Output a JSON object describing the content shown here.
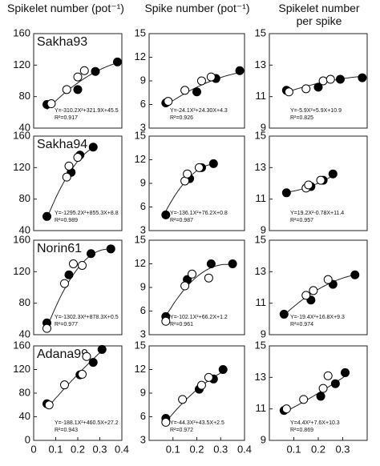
{
  "column_headers": [
    "Spikelet number (pot⁻¹)",
    "Spike number (pot⁻¹)",
    "Spikelet number per spike"
  ],
  "chart_data": [
    {
      "type": "scatter",
      "title": "Sakha93",
      "xlim": [
        0,
        0.4
      ],
      "ylim": [
        40,
        160
      ],
      "yticks": [
        40,
        80,
        120,
        160
      ],
      "series": [
        {
          "marker": "filled",
          "color": "#000000",
          "x": [
            0.06,
            0.2,
            0.28,
            0.38
          ],
          "values": [
            70,
            89,
            112,
            124
          ]
        },
        {
          "marker": "open",
          "color": "#000000",
          "x": [
            0.08,
            0.15,
            0.2,
            0.23
          ],
          "values": [
            71,
            89,
            105,
            113
          ]
        }
      ],
      "fit": [
        -310.2,
        321.9,
        45.5
      ],
      "annotations": [
        "Y=-310.2X²+321.9X+45.5",
        "R²=0.917"
      ]
    },
    {
      "type": "scatter",
      "xlim": [
        0,
        0.4
      ],
      "ylim": [
        3,
        15
      ],
      "yticks": [
        3,
        6,
        9,
        12,
        15
      ],
      "series": [
        {
          "marker": "filled",
          "color": "#000000",
          "x": [
            0.07,
            0.2,
            0.28,
            0.38
          ],
          "values": [
            6.2,
            7.6,
            9.3,
            10.3
          ]
        },
        {
          "marker": "open",
          "color": "#000000",
          "x": [
            0.08,
            0.15,
            0.22,
            0.26
          ],
          "values": [
            6.4,
            7.8,
            9.0,
            9.5
          ]
        }
      ],
      "fit": [
        -24.1,
        24.3,
        4.3
      ],
      "annotations": [
        "Y=-24.1X²+24.30X+4.3",
        "R²=0.926"
      ]
    },
    {
      "type": "scatter",
      "xlim": [
        0,
        0.4
      ],
      "ylim": [
        9,
        15
      ],
      "yticks": [
        9,
        11,
        13,
        15
      ],
      "series": [
        {
          "marker": "filled",
          "color": "#000000",
          "x": [
            0.07,
            0.2,
            0.29,
            0.38
          ],
          "values": [
            11.4,
            11.6,
            12.1,
            12.2
          ]
        },
        {
          "marker": "open",
          "color": "#000000",
          "x": [
            0.08,
            0.15,
            0.22,
            0.25
          ],
          "values": [
            11.3,
            11.5,
            12.0,
            12.1
          ]
        }
      ],
      "fit": [
        -5.9,
        5.9,
        10.9
      ],
      "annotations": [
        "Y=-5.9X²+5.9X+10.9",
        "R²=0.825"
      ]
    },
    {
      "type": "scatter",
      "title": "Sakha94",
      "xlim": [
        0,
        0.4
      ],
      "ylim": [
        40,
        160
      ],
      "yticks": [
        40,
        80,
        120,
        160
      ],
      "series": [
        {
          "marker": "filled",
          "color": "#000000",
          "x": [
            0.06,
            0.17,
            0.21,
            0.27
          ],
          "values": [
            58,
            114,
            136,
            146
          ]
        },
        {
          "marker": "open",
          "color": "#000000",
          "x": [
            0.15,
            0.16,
            0.2
          ],
          "values": [
            108,
            122,
            133
          ]
        }
      ],
      "fit": [
        -1295.2,
        855.3,
        8.8
      ],
      "annotations": [
        "Y=-1295.2X²+855.3X+8.8",
        "R²=0.989"
      ]
    },
    {
      "type": "scatter",
      "xlim": [
        0,
        0.4
      ],
      "ylim": [
        3,
        15
      ],
      "yticks": [
        3,
        6,
        9,
        12,
        15
      ],
      "series": [
        {
          "marker": "filled",
          "color": "#000000",
          "x": [
            0.07,
            0.17,
            0.22,
            0.27
          ],
          "values": [
            5,
            9.6,
            11.0,
            11.5
          ]
        },
        {
          "marker": "open",
          "color": "#000000",
          "x": [
            0.15,
            0.16,
            0.21
          ],
          "values": [
            9.3,
            10.2,
            11.0
          ]
        }
      ],
      "fit": [
        -136.1,
        76.2,
        0.8
      ],
      "annotations": [
        "Y=-136.1X²+76.2X+0.8",
        "R²=0.987"
      ]
    },
    {
      "type": "scatter",
      "xlim": [
        0,
        0.4
      ],
      "ylim": [
        9,
        15
      ],
      "yticks": [
        9,
        11,
        13,
        15
      ],
      "series": [
        {
          "marker": "filled",
          "color": "#000000",
          "x": [
            0.07,
            0.17,
            0.22,
            0.26
          ],
          "values": [
            11.4,
            11.8,
            12.2,
            12.6
          ]
        },
        {
          "marker": "open",
          "color": "#000000",
          "x": [
            0.15,
            0.16,
            0.21
          ],
          "values": [
            11.7,
            11.9,
            12.2
          ]
        }
      ],
      "fit": [
        19.2,
        -0.78,
        11.4
      ],
      "annotations": [
        "Y=19.2X²-0.78X+11.4",
        "R²=0.957"
      ]
    },
    {
      "type": "scatter",
      "title": "Norin61",
      "xlim": [
        0,
        0.4
      ],
      "ylim": [
        40,
        160
      ],
      "yticks": [
        40,
        80,
        120,
        160
      ],
      "series": [
        {
          "marker": "filled",
          "color": "#000000",
          "x": [
            0.06,
            0.16,
            0.26,
            0.35
          ],
          "values": [
            55,
            116,
            143,
            149
          ]
        },
        {
          "marker": "open",
          "color": "#000000",
          "x": [
            0.06,
            0.14,
            0.18,
            0.22
          ],
          "values": [
            48,
            105,
            130,
            128
          ]
        }
      ],
      "fit": [
        -1302.3,
        878.3,
        0.5
      ],
      "annotations": [
        "Y=-1302.3X²+878.3X+0.5",
        "R²=0.977"
      ]
    },
    {
      "type": "scatter",
      "xlim": [
        0,
        0.4
      ],
      "ylim": [
        3,
        15
      ],
      "yticks": [
        3,
        6,
        9,
        12,
        15
      ],
      "series": [
        {
          "marker": "filled",
          "color": "#000000",
          "x": [
            0.07,
            0.16,
            0.26,
            0.35
          ],
          "values": [
            5.3,
            10.0,
            12.0,
            12.0
          ]
        },
        {
          "marker": "open",
          "color": "#000000",
          "x": [
            0.07,
            0.15,
            0.18,
            0.25
          ],
          "values": [
            4.7,
            9.2,
            10.7,
            10.2
          ]
        }
      ],
      "fit": [
        -102.1,
        66.2,
        1.2
      ],
      "annotations": [
        "Y=-102.1X²+66.2X+1.2",
        "R²=0.961"
      ]
    },
    {
      "type": "scatter",
      "xlim": [
        0,
        0.4
      ],
      "ylim": [
        9,
        15
      ],
      "yticks": [
        9,
        11,
        13,
        15
      ],
      "series": [
        {
          "marker": "filled",
          "color": "#000000",
          "x": [
            0.06,
            0.17,
            0.26,
            0.35
          ],
          "values": [
            10.3,
            11.2,
            12.2,
            12.8
          ]
        },
        {
          "marker": "open",
          "color": "#000000",
          "x": [
            0.15,
            0.18,
            0.24
          ],
          "values": [
            11.5,
            11.8,
            12.5
          ]
        }
      ],
      "fit": [
        -19.4,
        16.8,
        9.3
      ],
      "annotations": [
        "Y=-19.4X²+16.8X+9.3",
        "R²=0.974"
      ]
    },
    {
      "type": "scatter",
      "title": "Adana99",
      "xlim": [
        0,
        0.4
      ],
      "ylim": [
        0,
        160
      ],
      "yticks": [
        0,
        40,
        80,
        120,
        160
      ],
      "xticks": [
        0,
        0.1,
        0.2,
        0.3,
        0.4
      ],
      "series": [
        {
          "marker": "filled",
          "color": "#000000",
          "x": [
            0.06,
            0.21,
            0.27,
            0.31
          ],
          "values": [
            62,
            111,
            132,
            154
          ]
        },
        {
          "marker": "open",
          "color": "#000000",
          "x": [
            0.07,
            0.14,
            0.22,
            0.24
          ],
          "values": [
            60,
            94,
            112,
            142
          ]
        }
      ],
      "fit": [
        -188.1,
        460.5,
        27.2
      ],
      "annotations": [
        "Y=-188.1X²+460.5X+27.2",
        "R²=0.943"
      ]
    },
    {
      "type": "scatter",
      "xlim": [
        0,
        0.4
      ],
      "ylim": [
        3,
        15
      ],
      "yticks": [
        3,
        6,
        9,
        12,
        15
      ],
      "xticks": [
        0.1,
        0.2,
        0.3,
        0.4
      ],
      "series": [
        {
          "marker": "filled",
          "color": "#000000",
          "x": [
            0.07,
            0.21,
            0.27,
            0.31
          ],
          "values": [
            5.8,
            9.5,
            10.8,
            12.0
          ]
        },
        {
          "marker": "open",
          "color": "#000000",
          "x": [
            0.07,
            0.14,
            0.22,
            0.25
          ],
          "values": [
            5.3,
            8.2,
            10.0,
            11.0
          ]
        }
      ],
      "fit": [
        -44.3,
        43.5,
        2.5
      ],
      "annotations": [
        "Y=-44.3X²+43.5X+2.5",
        "R²=0.972"
      ]
    },
    {
      "type": "scatter",
      "xlim": [
        0,
        0.4
      ],
      "ylim": [
        9,
        15
      ],
      "yticks": [
        9,
        11,
        13,
        15
      ],
      "xticks": [
        0.1,
        0.2,
        0.3
      ],
      "series": [
        {
          "marker": "filled",
          "color": "#000000",
          "x": [
            0.06,
            0.21,
            0.27,
            0.31
          ],
          "values": [
            10.9,
            11.8,
            12.6,
            13.3
          ]
        },
        {
          "marker": "open",
          "color": "#000000",
          "x": [
            0.07,
            0.14,
            0.22,
            0.24
          ],
          "values": [
            11.0,
            11.6,
            12.3,
            13.1
          ]
        }
      ],
      "fit": [
        4.4,
        7.6,
        10.3
      ],
      "annotations": [
        "Y=4.4X²+7.6X+10.3",
        "R²=0.869"
      ]
    }
  ]
}
